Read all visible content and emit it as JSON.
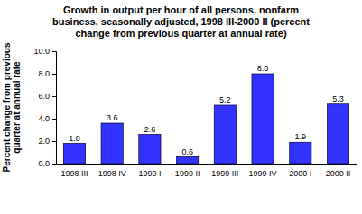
{
  "chart_data": {
    "type": "bar",
    "title": "Growth in output per hour of all persons, nonfarm business, seasonally adjusted, 1998 III-2000 II (percent change from previous quarter at annual rate)",
    "y_label": "Percent change from previous quarter at annual rate",
    "categories": [
      "1998 III",
      "1998 IV",
      "1999 I",
      "1999 II",
      "1999 III",
      "1999 IV",
      "2000 I",
      "2000 II"
    ],
    "values": [
      1.8,
      3.6,
      2.6,
      0.6,
      5.2,
      8.0,
      1.9,
      5.3
    ],
    "value_labels": [
      "1.8",
      "3.6",
      "2.6",
      "0.6",
      "5.2",
      "8.0",
      "1.9",
      "5.3"
    ],
    "color": "#3333ff",
    "ylim": [
      0,
      10
    ],
    "yticks": [
      {
        "value": 0,
        "label": "0.0"
      },
      {
        "value": 2,
        "label": "2.0"
      },
      {
        "value": 4,
        "label": "4.0"
      },
      {
        "value": 6,
        "label": "6.0"
      },
      {
        "value": 8,
        "label": "8.0"
      },
      {
        "value": 10,
        "label": "10.0"
      }
    ],
    "grid": false,
    "data_labels": true
  }
}
